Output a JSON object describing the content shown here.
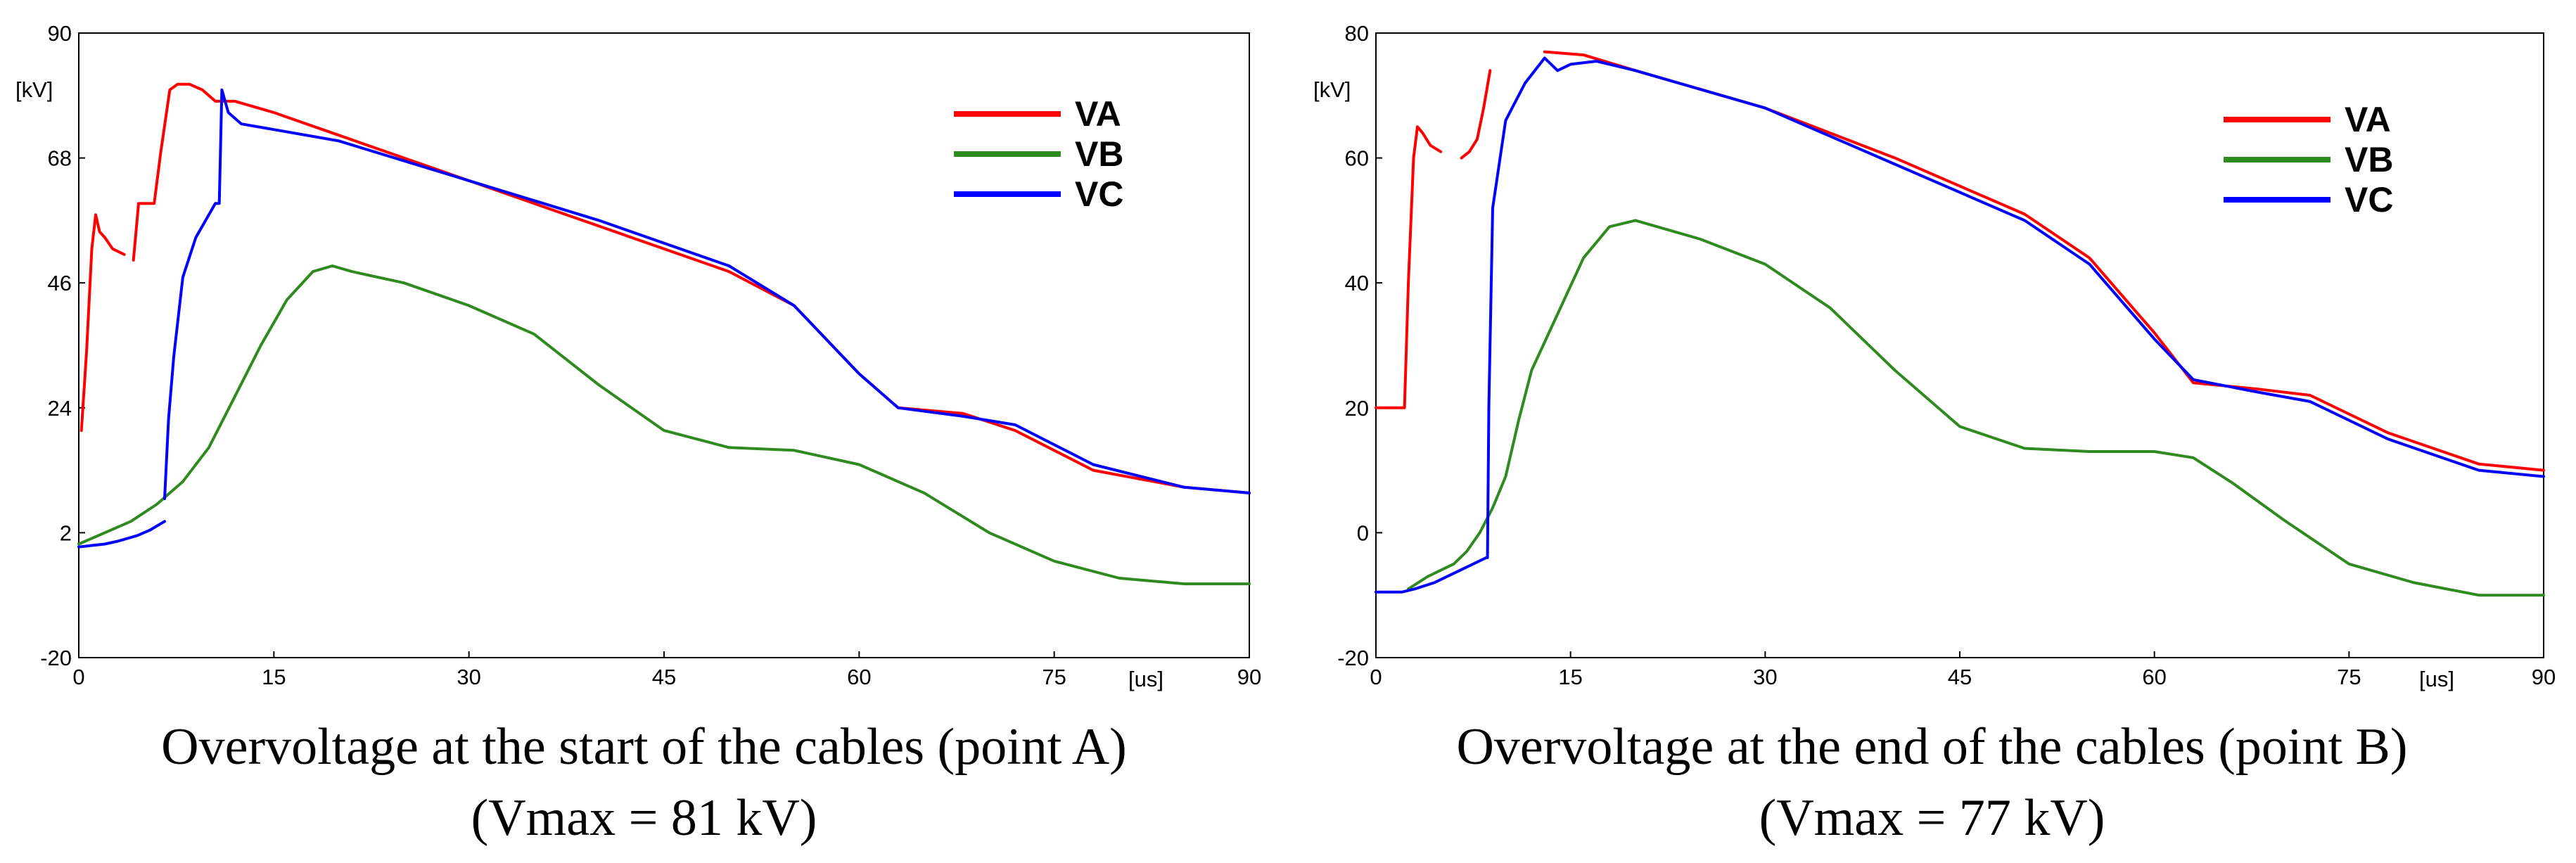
{
  "chart_data": [
    {
      "type": "line",
      "title": "Overvoltage at the start of the cables (point A)",
      "subtitle": "(Vmax = 81 kV)",
      "x_unit": "[us]",
      "y_unit": "[kV]",
      "xlim": [
        0,
        90
      ],
      "ylim": [
        -20,
        90
      ],
      "x_ticks": [
        0,
        15,
        30,
        45,
        60,
        75,
        90
      ],
      "y_ticks": [
        -20,
        2,
        24,
        46,
        68,
        90
      ],
      "grid": false,
      "legend_position": "top-right",
      "legend": [
        "VA",
        "VB",
        "VC"
      ],
      "series": [
        {
          "name": "VA",
          "color": "#ff0000",
          "segments": [
            [
              [
                0.2,
                20
              ],
              [
                0.6,
                34
              ],
              [
                1.0,
                52
              ],
              [
                1.3,
                58
              ],
              [
                1.6,
                55
              ],
              [
                2.0,
                54
              ],
              [
                2.6,
                52
              ],
              [
                3.5,
                51
              ]
            ],
            [
              [
                4.2,
                50
              ],
              [
                4.6,
                60
              ],
              [
                5.8,
                60
              ],
              [
                6.3,
                69
              ],
              [
                7.0,
                80
              ],
              [
                7.6,
                81
              ],
              [
                8.5,
                81
              ],
              [
                9.5,
                80
              ],
              [
                10.5,
                78
              ],
              [
                12,
                78
              ],
              [
                15,
                76
              ],
              [
                20,
                72
              ],
              [
                30,
                64
              ],
              [
                40,
                56
              ],
              [
                50,
                48
              ],
              [
                55,
                42
              ],
              [
                60,
                30
              ],
              [
                63,
                24
              ],
              [
                68,
                23
              ],
              [
                72,
                20
              ],
              [
                78,
                13
              ],
              [
                85,
                10
              ],
              [
                90,
                9
              ]
            ]
          ]
        },
        {
          "name": "VB",
          "color": "#2f8a1f",
          "segments": [
            [
              [
                0,
                0
              ],
              [
                2,
                2
              ],
              [
                4,
                4
              ],
              [
                6,
                7
              ],
              [
                8,
                11
              ],
              [
                10,
                17
              ],
              [
                12,
                26
              ],
              [
                14,
                35
              ],
              [
                16,
                43
              ],
              [
                18,
                48
              ],
              [
                19.5,
                49
              ],
              [
                21,
                48
              ],
              [
                25,
                46
              ],
              [
                30,
                42
              ],
              [
                35,
                37
              ],
              [
                40,
                28
              ],
              [
                45,
                20
              ],
              [
                50,
                17
              ],
              [
                55,
                16.5
              ],
              [
                60,
                14
              ],
              [
                65,
                9
              ],
              [
                70,
                2
              ],
              [
                75,
                -3
              ],
              [
                80,
                -6
              ],
              [
                85,
                -7
              ],
              [
                90,
                -7
              ]
            ]
          ]
        },
        {
          "name": "VC",
          "color": "#0000ff",
          "segments": [
            [
              [
                0,
                -0.5
              ],
              [
                2,
                0
              ],
              [
                3,
                0.5
              ],
              [
                4.5,
                1.5
              ],
              [
                5.5,
                2.5
              ],
              [
                6.6,
                4
              ]
            ],
            [
              [
                6.6,
                8
              ],
              [
                6.9,
                22
              ],
              [
                7.3,
                33
              ],
              [
                8,
                47
              ],
              [
                9,
                54
              ],
              [
                10.5,
                60
              ],
              [
                10.8,
                60
              ],
              [
                11,
                80
              ],
              [
                11.5,
                76
              ],
              [
                12.5,
                74
              ],
              [
                15,
                73
              ],
              [
                20,
                71
              ],
              [
                30,
                64
              ],
              [
                40,
                57
              ],
              [
                50,
                49
              ],
              [
                55,
                42
              ],
              [
                60,
                30
              ],
              [
                63,
                24
              ],
              [
                68,
                22.5
              ],
              [
                72,
                21
              ],
              [
                78,
                14
              ],
              [
                85,
                10
              ],
              [
                90,
                9
              ]
            ]
          ]
        }
      ]
    },
    {
      "type": "line",
      "title": "Overvoltage at the end of the cables (point B)",
      "subtitle": "(Vmax = 77 kV)",
      "x_unit": "[us]",
      "y_unit": "[kV]",
      "xlim": [
        0,
        90
      ],
      "ylim": [
        -20,
        80
      ],
      "x_ticks": [
        0,
        15,
        30,
        45,
        60,
        75,
        90
      ],
      "y_ticks": [
        -20,
        0,
        20,
        40,
        60,
        80
      ],
      "grid": false,
      "legend_position": "top-right",
      "legend": [
        "VA",
        "VB",
        "VC"
      ],
      "series": [
        {
          "name": "VA",
          "color": "#ff0000",
          "segments": [
            [
              [
                0,
                20
              ],
              [
                2.2,
                20
              ],
              [
                2.5,
                40
              ],
              [
                2.9,
                60
              ],
              [
                3.2,
                65
              ],
              [
                3.6,
                64
              ],
              [
                4.2,
                62
              ],
              [
                5.0,
                61
              ]
            ],
            [
              [
                6.6,
                60
              ],
              [
                7.2,
                61
              ],
              [
                7.8,
                63
              ],
              [
                8.3,
                68
              ],
              [
                8.8,
                74
              ]
            ],
            [
              [
                13,
                77
              ],
              [
                16,
                76.5
              ],
              [
                20,
                74
              ],
              [
                30,
                68
              ],
              [
                40,
                60
              ],
              [
                50,
                51
              ],
              [
                55,
                44
              ],
              [
                60,
                32
              ],
              [
                63,
                24
              ],
              [
                68,
                23
              ],
              [
                72,
                22
              ],
              [
                78,
                16
              ],
              [
                85,
                11
              ],
              [
                90,
                10
              ]
            ]
          ]
        },
        {
          "name": "VB",
          "color": "#2f8a1f",
          "segments": [
            [
              [
                2.5,
                -9
              ],
              [
                4,
                -7
              ],
              [
                5,
                -6
              ],
              [
                6,
                -5
              ],
              [
                7,
                -3
              ],
              [
                8,
                0
              ],
              [
                9,
                4
              ],
              [
                10,
                9
              ],
              [
                11,
                18
              ],
              [
                12,
                26
              ],
              [
                14,
                35
              ],
              [
                16,
                44
              ],
              [
                18,
                49
              ],
              [
                20,
                50
              ],
              [
                25,
                47
              ],
              [
                30,
                43
              ],
              [
                35,
                36
              ],
              [
                40,
                26
              ],
              [
                45,
                17
              ],
              [
                50,
                13.5
              ],
              [
                55,
                13
              ],
              [
                60,
                13
              ],
              [
                63,
                12
              ],
              [
                66,
                8
              ],
              [
                70,
                2
              ],
              [
                75,
                -5
              ],
              [
                80,
                -8
              ],
              [
                85,
                -10
              ],
              [
                90,
                -10
              ]
            ]
          ]
        },
        {
          "name": "VC",
          "color": "#0000ff",
          "segments": [
            [
              [
                0,
                -9.5
              ],
              [
                2,
                -9.5
              ],
              [
                3,
                -9
              ],
              [
                4.5,
                -8
              ],
              [
                5.5,
                -7
              ],
              [
                6.5,
                -6
              ],
              [
                7.5,
                -5
              ],
              [
                8.5,
                -4
              ]
            ],
            [
              [
                8.6,
                -4
              ],
              [
                8.7,
                20
              ],
              [
                9,
                52
              ],
              [
                10,
                66
              ],
              [
                11.5,
                72
              ],
              [
                13,
                76
              ],
              [
                14,
                74
              ],
              [
                15,
                75
              ],
              [
                17,
                75.5
              ],
              [
                20,
                74
              ],
              [
                30,
                68
              ],
              [
                40,
                59
              ],
              [
                50,
                50
              ],
              [
                55,
                43
              ],
              [
                60,
                31
              ],
              [
                63,
                24.5
              ],
              [
                68,
                22.5
              ],
              [
                72,
                21
              ],
              [
                78,
                15
              ],
              [
                85,
                10
              ],
              [
                90,
                9
              ]
            ]
          ]
        }
      ]
    }
  ]
}
